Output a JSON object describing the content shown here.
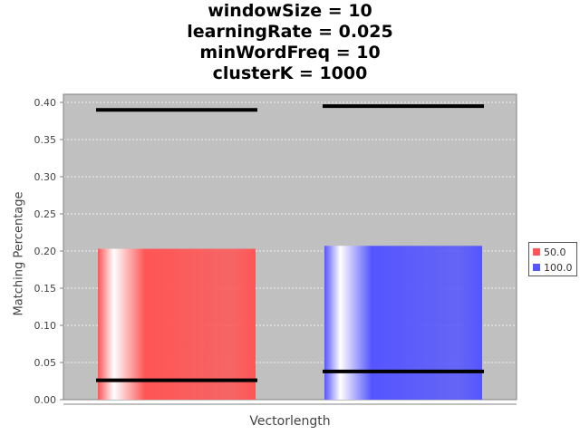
{
  "chart_data": {
    "type": "bar",
    "title_lines": [
      "windowSize = 10",
      "learningRate = 0.025",
      "minWordFreq = 10",
      "clusterK = 1000"
    ],
    "xlabel": "Vectorlength",
    "ylabel": "Matching Percentage",
    "ylim": [
      0,
      0.4
    ],
    "yticks": [
      "0.00",
      "0.05",
      "0.10",
      "0.15",
      "0.20",
      "0.25",
      "0.30",
      "0.35",
      "0.40"
    ],
    "grid": true,
    "legend_position": "right",
    "background": "#c0c0c0",
    "series": [
      {
        "name": "50.0",
        "value": 0.203,
        "min": 0.026,
        "max": 0.39,
        "color": "#ff5555"
      },
      {
        "name": "100.0",
        "value": 0.207,
        "min": 0.038,
        "max": 0.395,
        "color": "#5555ff"
      }
    ]
  }
}
